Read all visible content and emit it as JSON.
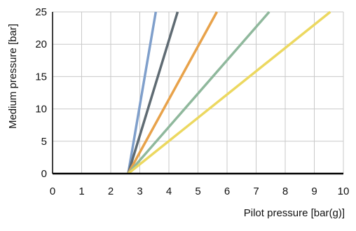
{
  "chart_data": {
    "type": "line",
    "xlabel": "Pilot pressure [bar(g)]",
    "ylabel": "Medium pressure [bar]",
    "xlim": [
      0,
      10
    ],
    "ylim": [
      0,
      25
    ],
    "xticks": [
      "0",
      "1",
      "2",
      "3",
      "4",
      "5",
      "6",
      "7",
      "8",
      "9",
      "10"
    ],
    "yticks": [
      "0",
      "5",
      "10",
      "15",
      "20",
      "25"
    ],
    "grid": true,
    "series": [
      {
        "color": "#7f9fcb",
        "x": [
          2.6,
          3.55
        ],
        "y": [
          0,
          25
        ]
      },
      {
        "color": "#5f6b73",
        "x": [
          2.6,
          4.3
        ],
        "y": [
          0,
          25
        ]
      },
      {
        "color": "#e8a24a",
        "x": [
          2.6,
          5.65
        ],
        "y": [
          0,
          25
        ]
      },
      {
        "color": "#8fb89c",
        "x": [
          2.6,
          7.45
        ],
        "y": [
          0,
          25
        ]
      },
      {
        "color": "#ecd860",
        "x": [
          2.6,
          9.55
        ],
        "y": [
          0,
          25
        ]
      }
    ]
  }
}
